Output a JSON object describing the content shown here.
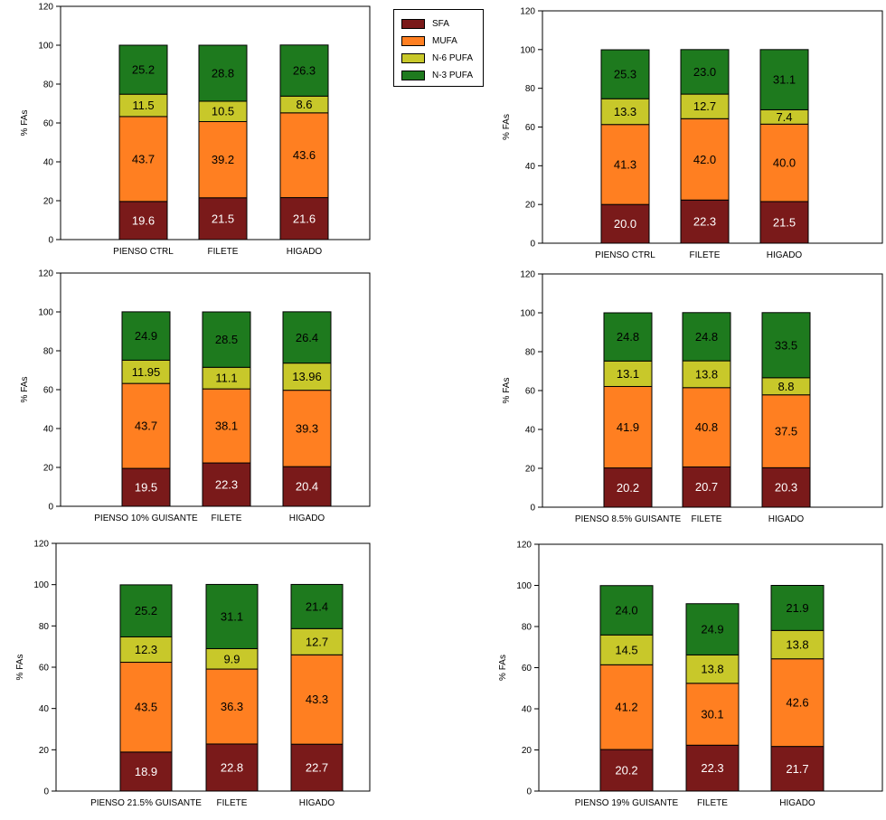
{
  "colors": {
    "SFA": "#7a1a1a",
    "MUFA": "#ff7f21",
    "N6": "#c8c82a",
    "N3": "#1e7a1e"
  },
  "legend": {
    "items": [
      {
        "key": "SFA",
        "label": "SFA"
      },
      {
        "key": "MUFA",
        "label": "MUFA"
      },
      {
        "key": "N6",
        "label": "N-6 PUFA"
      },
      {
        "key": "N3",
        "label": "N-3 PUFA"
      }
    ]
  },
  "chart_data": [
    {
      "type": "bar",
      "stacked": true,
      "ylabel": "% FAs",
      "ylim": [
        0,
        120
      ],
      "yticks": [
        0,
        20,
        40,
        60,
        80,
        100,
        120
      ],
      "categories": [
        "PIENSO CTRL",
        "FILETE",
        "HIGADO"
      ],
      "series": [
        {
          "name": "SFA",
          "values": [
            19.6,
            21.5,
            21.6
          ]
        },
        {
          "name": "MUFA",
          "values": [
            43.7,
            39.2,
            43.6
          ]
        },
        {
          "name": "N-6 PUFA",
          "values": [
            11.5,
            10.5,
            8.6
          ]
        },
        {
          "name": "N-3 PUFA",
          "values": [
            25.2,
            28.8,
            26.3
          ]
        }
      ],
      "labels": [
        [
          "19.6",
          "43.7",
          "11.5",
          "25.2"
        ],
        [
          "21.5",
          "39.2",
          "10.5",
          "28.8"
        ],
        [
          "21.6",
          "43.6",
          "8.6",
          "26.3"
        ]
      ]
    },
    {
      "type": "bar",
      "stacked": true,
      "ylabel": "% FAs",
      "ylim": [
        0,
        120
      ],
      "yticks": [
        0,
        20,
        40,
        60,
        80,
        100,
        120
      ],
      "categories": [
        "PIENSO CTRL",
        "FILETE",
        "HIGADO"
      ],
      "series": [
        {
          "name": "SFA",
          "values": [
            20.0,
            22.3,
            21.5
          ]
        },
        {
          "name": "MUFA",
          "values": [
            41.3,
            42.0,
            40.0
          ]
        },
        {
          "name": "N-6 PUFA",
          "values": [
            13.3,
            12.7,
            7.4
          ]
        },
        {
          "name": "N-3 PUFA",
          "values": [
            25.3,
            23.0,
            31.1
          ]
        }
      ],
      "labels": [
        [
          "20.0",
          "41.3",
          "13.3",
          "25.3"
        ],
        [
          "22.3",
          "42.0",
          "12.7",
          "23.0"
        ],
        [
          "21.5",
          "40.0",
          "7.4",
          "31.1"
        ]
      ]
    },
    {
      "type": "bar",
      "stacked": true,
      "ylabel": "% FAs",
      "ylim": [
        0,
        120
      ],
      "yticks": [
        0,
        20,
        40,
        60,
        80,
        100,
        120
      ],
      "categories": [
        "PIENSO 10% GUISANTE",
        "FILETE",
        "HIGADO"
      ],
      "series": [
        {
          "name": "SFA",
          "values": [
            19.5,
            22.3,
            20.4
          ]
        },
        {
          "name": "MUFA",
          "values": [
            43.7,
            38.1,
            39.3
          ]
        },
        {
          "name": "N-6 PUFA",
          "values": [
            11.95,
            11.1,
            13.96
          ]
        },
        {
          "name": "N-3 PUFA",
          "values": [
            24.9,
            28.5,
            26.4
          ]
        }
      ],
      "labels": [
        [
          "19.5",
          "43.7",
          "11.95",
          "24.9"
        ],
        [
          "22.3",
          "38.1",
          "11.1",
          "28.5"
        ],
        [
          "20.4",
          "39.3",
          "13.96",
          "26.4"
        ]
      ]
    },
    {
      "type": "bar",
      "stacked": true,
      "ylabel": "% FAs",
      "ylim": [
        0,
        120
      ],
      "yticks": [
        0,
        20,
        40,
        60,
        80,
        100,
        120
      ],
      "categories": [
        "PIENSO 8.5% GUISANTE",
        "FILETE",
        "HIGADO"
      ],
      "series": [
        {
          "name": "SFA",
          "values": [
            20.2,
            20.7,
            20.3
          ]
        },
        {
          "name": "MUFA",
          "values": [
            41.9,
            40.8,
            37.5
          ]
        },
        {
          "name": "N-6 PUFA",
          "values": [
            13.1,
            13.8,
            8.8
          ]
        },
        {
          "name": "N-3 PUFA",
          "values": [
            24.8,
            24.8,
            33.5
          ]
        }
      ],
      "labels": [
        [
          "20.2",
          "41.9",
          "13.1",
          "24.8"
        ],
        [
          "20.7",
          "40.8",
          "13.8",
          "24.8"
        ],
        [
          "20.3",
          "37.5",
          "8.8",
          "33.5"
        ]
      ]
    },
    {
      "type": "bar",
      "stacked": true,
      "ylabel": "% FAs",
      "ylim": [
        0,
        120
      ],
      "yticks": [
        0,
        20,
        40,
        60,
        80,
        100,
        120
      ],
      "categories": [
        "PIENSO 21.5% GUISANTE",
        "FILETE",
        "HIGADO"
      ],
      "series": [
        {
          "name": "SFA",
          "values": [
            18.9,
            22.8,
            22.7
          ]
        },
        {
          "name": "MUFA",
          "values": [
            43.5,
            36.3,
            43.3
          ]
        },
        {
          "name": "N-6 PUFA",
          "values": [
            12.3,
            9.9,
            12.7
          ]
        },
        {
          "name": "N-3 PUFA",
          "values": [
            25.2,
            31.1,
            21.4
          ]
        }
      ],
      "labels": [
        [
          "18.9",
          "43.5",
          "12.3",
          "25.2"
        ],
        [
          "22.8",
          "36.3",
          "9.9",
          "31.1"
        ],
        [
          "22.7",
          "43.3",
          "12.7",
          "21.4"
        ]
      ]
    },
    {
      "type": "bar",
      "stacked": true,
      "ylabel": "% FAs",
      "ylim": [
        0,
        120
      ],
      "yticks": [
        0,
        20,
        40,
        60,
        80,
        100,
        120
      ],
      "categories": [
        "PIENSO 19% GUISANTE",
        "FILETE",
        "HIGADO"
      ],
      "series": [
        {
          "name": "SFA",
          "values": [
            20.2,
            22.3,
            21.7
          ]
        },
        {
          "name": "MUFA",
          "values": [
            41.2,
            30.1,
            42.6
          ]
        },
        {
          "name": "N-6 PUFA",
          "values": [
            14.5,
            13.8,
            13.8
          ]
        },
        {
          "name": "N-3 PUFA",
          "values": [
            24.0,
            24.9,
            21.9
          ]
        }
      ],
      "labels": [
        [
          "20.2",
          "41.2",
          "14.5",
          "24.0"
        ],
        [
          "22.3",
          "30.1",
          "13.8",
          "24.9"
        ],
        [
          "21.7",
          "42.6",
          "13.8",
          "21.9"
        ]
      ]
    }
  ]
}
